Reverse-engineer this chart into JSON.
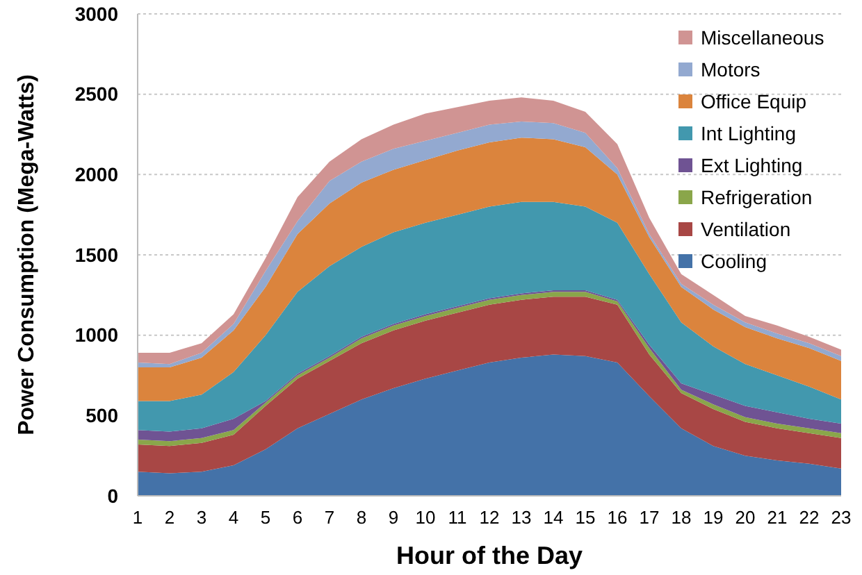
{
  "chart_data": {
    "type": "area",
    "stacked": true,
    "xlabel": "Hour of the Day",
    "ylabel": "Power Consumption (Mega-Watts)",
    "x": [
      1,
      2,
      3,
      4,
      5,
      6,
      7,
      8,
      9,
      10,
      11,
      12,
      13,
      14,
      15,
      16,
      17,
      18,
      19,
      20,
      21,
      22,
      23
    ],
    "xlim": [
      1,
      23
    ],
    "xticks": [
      1,
      2,
      3,
      4,
      5,
      6,
      7,
      8,
      9,
      10,
      11,
      12,
      13,
      14,
      15,
      16,
      17,
      18,
      19,
      20,
      21,
      22,
      23
    ],
    "ylim": [
      0,
      3000
    ],
    "yticks": [
      0,
      500,
      1000,
      1500,
      2000,
      2500,
      3000
    ],
    "grid": "y",
    "legend": "top right",
    "series": [
      {
        "name": "Cooling",
        "color": "#4472a8",
        "values": [
          150,
          140,
          150,
          190,
          290,
          420,
          510,
          600,
          670,
          730,
          780,
          830,
          860,
          880,
          870,
          830,
          620,
          420,
          310,
          250,
          220,
          200,
          170
        ]
      },
      {
        "name": "Ventilation",
        "color": "#a84745",
        "values": [
          170,
          170,
          180,
          190,
          270,
          310,
          330,
          350,
          360,
          360,
          360,
          360,
          360,
          360,
          370,
          360,
          260,
          220,
          230,
          210,
          200,
          190,
          190
        ]
      },
      {
        "name": "Refrigeration",
        "color": "#8aa64a",
        "values": [
          30,
          30,
          30,
          30,
          20,
          20,
          20,
          30,
          30,
          30,
          30,
          30,
          30,
          30,
          30,
          20,
          40,
          20,
          30,
          30,
          30,
          30,
          30
        ]
      },
      {
        "name": "Ext Lighting",
        "color": "#6f5393",
        "values": [
          60,
          60,
          60,
          70,
          10,
          10,
          10,
          10,
          10,
          10,
          10,
          10,
          10,
          10,
          10,
          10,
          20,
          40,
          60,
          70,
          70,
          60,
          60
        ]
      },
      {
        "name": "Int Lighting",
        "color": "#4298ae",
        "values": [
          180,
          190,
          210,
          290,
          410,
          510,
          560,
          560,
          570,
          570,
          570,
          570,
          570,
          550,
          520,
          480,
          440,
          380,
          300,
          260,
          230,
          200,
          150
        ]
      },
      {
        "name": "Office Equip",
        "color": "#db843d",
        "values": [
          210,
          210,
          230,
          260,
          300,
          360,
          390,
          400,
          390,
          390,
          400,
          400,
          400,
          390,
          370,
          300,
          230,
          220,
          230,
          230,
          230,
          240,
          240
        ]
      },
      {
        "name": "Motors",
        "color": "#93a9d0",
        "values": [
          30,
          20,
          30,
          40,
          100,
          80,
          140,
          130,
          130,
          120,
          110,
          110,
          100,
          100,
          90,
          40,
          20,
          20,
          30,
          30,
          30,
          30,
          30
        ]
      },
      {
        "name": "Miscellaneous",
        "color": "#d09493",
        "values": [
          60,
          70,
          60,
          60,
          80,
          150,
          120,
          140,
          150,
          170,
          160,
          150,
          150,
          140,
          130,
          150,
          100,
          60,
          60,
          40,
          50,
          40,
          40
        ]
      }
    ]
  }
}
